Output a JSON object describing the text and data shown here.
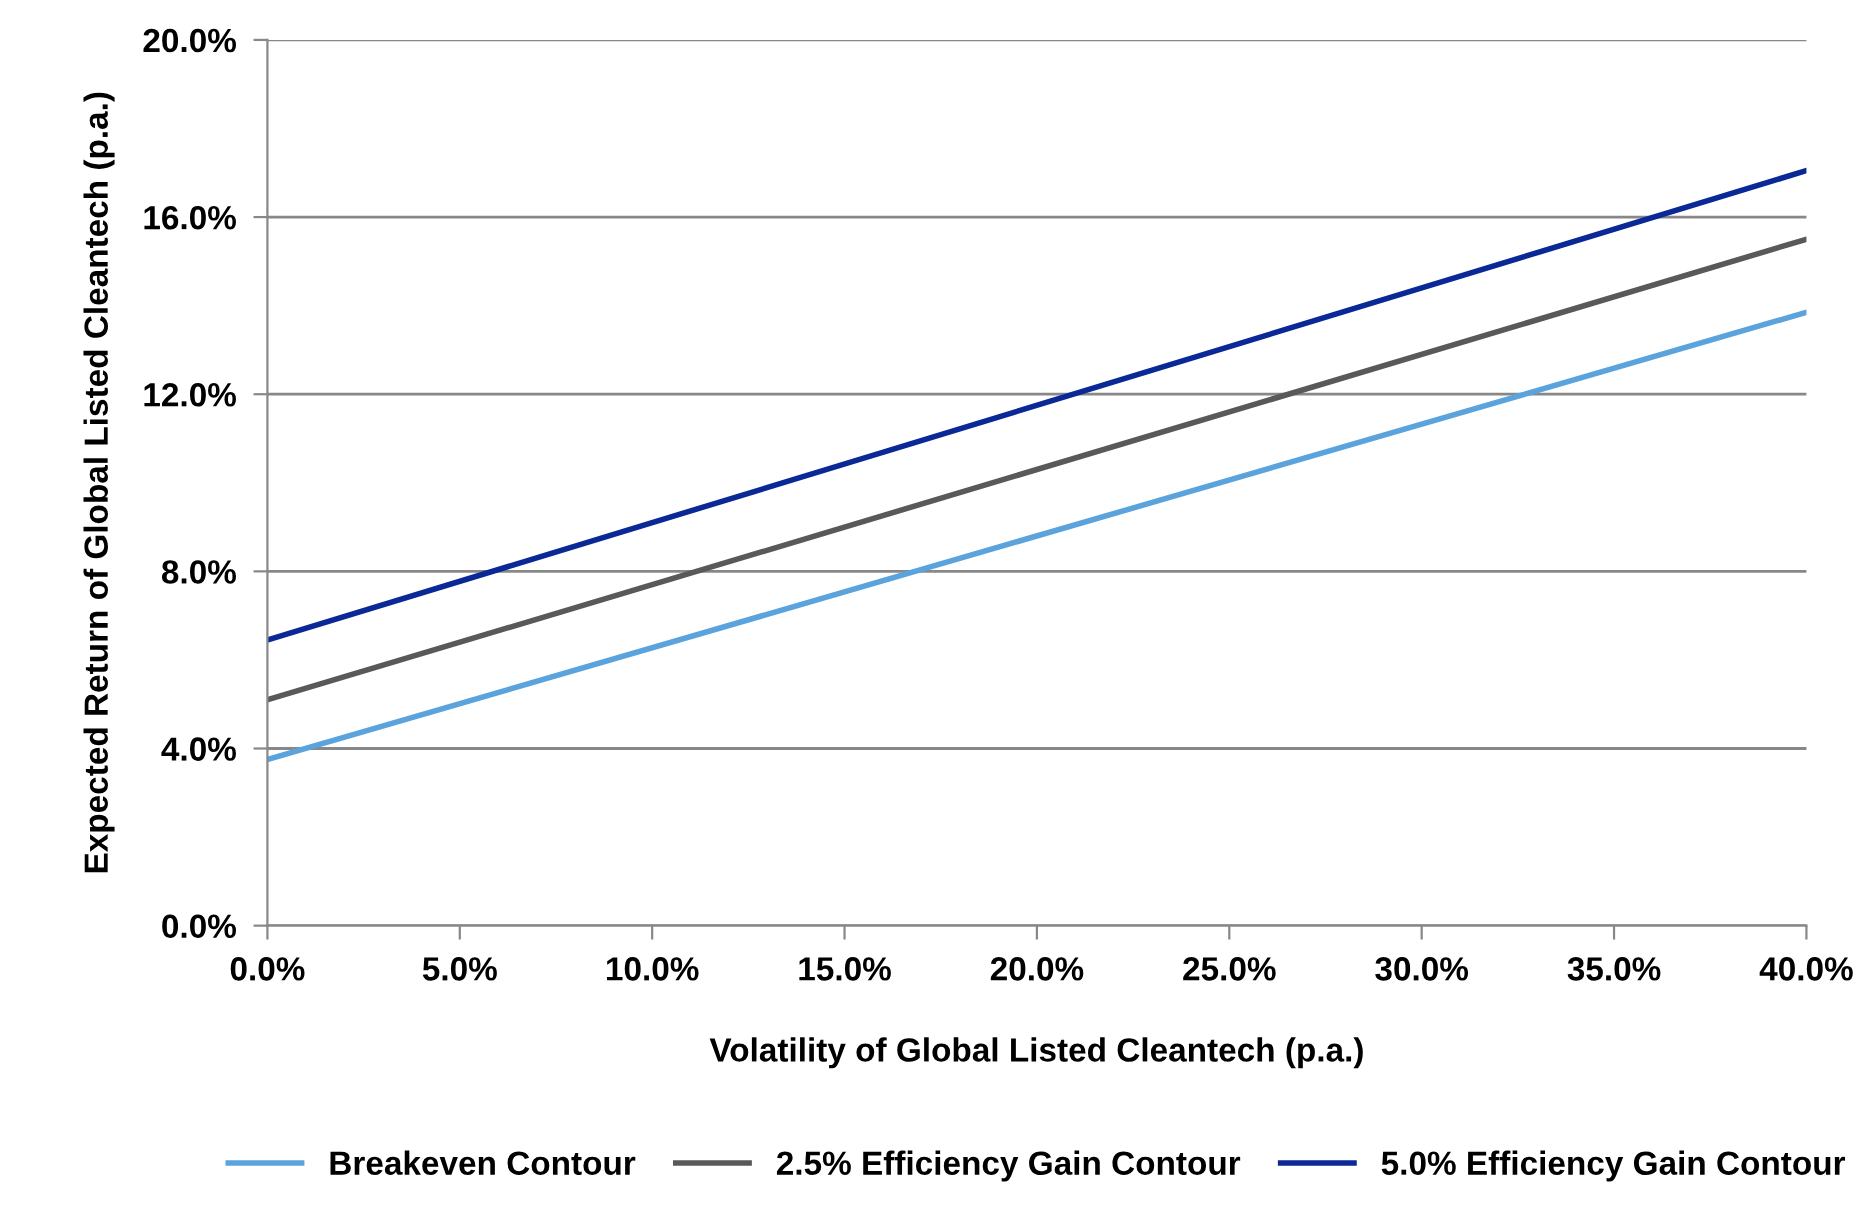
{
  "chart_data": {
    "type": "line",
    "xlabel": "Volatility of Global Listed Cleantech (p.a.)",
    "ylabel": "Expected Return of Global Listed Cleantech (p.a.)",
    "x": [
      0,
      40
    ],
    "series": [
      {
        "name": "Breakeven Contour",
        "color": "#5ba3dc",
        "values": [
          3.75,
          13.85
        ]
      },
      {
        "name": "2.5% Efficiency Gain Contour",
        "color": "#595959",
        "values": [
          5.1,
          15.5
        ]
      },
      {
        "name": "5.0% Efficiency Gain Contour",
        "color": "#0a2896",
        "values": [
          6.45,
          17.05
        ]
      }
    ],
    "xlim": [
      0,
      40
    ],
    "ylim": [
      0,
      20
    ],
    "xticks": [
      {
        "value": 0,
        "label": "0.0%"
      },
      {
        "value": 5,
        "label": "5.0%"
      },
      {
        "value": 10,
        "label": "10.0%"
      },
      {
        "value": 15,
        "label": "15.0%"
      },
      {
        "value": 20,
        "label": "20.0%"
      },
      {
        "value": 25,
        "label": "25.0%"
      },
      {
        "value": 30,
        "label": "30.0%"
      },
      {
        "value": 35,
        "label": "35.0%"
      },
      {
        "value": 40,
        "label": "40.0%"
      }
    ],
    "yticks": [
      {
        "value": 0,
        "label": "0.0%"
      },
      {
        "value": 4,
        "label": "4.0%"
      },
      {
        "value": 8,
        "label": "8.0%"
      },
      {
        "value": 12,
        "label": "12.0%"
      },
      {
        "value": 16,
        "label": "16.0%"
      },
      {
        "value": 20,
        "label": "20.0%"
      }
    ],
    "grid": "y",
    "legend": "bottom",
    "marker": "none",
    "line_style": "solid"
  }
}
